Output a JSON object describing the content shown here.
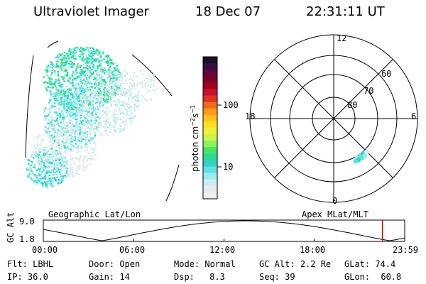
{
  "header": {
    "title": "Ultraviolet Imager",
    "date": "18 Dec 07",
    "time": "22:31:11 UT"
  },
  "colorbar": {
    "label_main": "photon cm",
    "label_exp1": "−2",
    "label_mid": "s",
    "label_exp2": "−1",
    "ticks": [
      "100",
      "10"
    ],
    "colors": [
      "#1a0f2e",
      "#3a0d3e",
      "#5b0a3a",
      "#7d0026",
      "#a3001b",
      "#c8102e",
      "#e0341f",
      "#f26a1b",
      "#ff9a1a",
      "#ffc21a",
      "#ffe020",
      "#f0f036",
      "#c9f54a",
      "#8ef25a",
      "#48e36a",
      "#2fd996",
      "#31d4c2",
      "#5fe0e6",
      "#9eeaf0",
      "#cdeef0",
      "#e6ecec",
      "#eeeeee"
    ]
  },
  "polar": {
    "labels": {
      "top": "12",
      "bottom": "0",
      "left": "18",
      "right": "6"
    },
    "rings": [
      "60",
      "70",
      "80"
    ]
  },
  "strip": {
    "left_title": "Geographic Lat/Lon",
    "right_title": "Apex MLat/MLT",
    "ylabel": "GC Alt",
    "ymax": "9.0",
    "ymin": "1.8",
    "time_ticks": [
      "00:00",
      "06:00",
      "12:00",
      "18:00",
      "23:59"
    ],
    "marker_time_hours": 22.52
  },
  "info": {
    "flt_label": "Flt:",
    "flt_value": "LBHL",
    "door_label": "Door:",
    "door_value": "Open",
    "mode_label": "Mode:",
    "mode_value": "Normal",
    "gcalt_label": "GC Alt:",
    "gcalt_value": "2.2 Re",
    "glat_label": "GLat:",
    "glat_value": "74.4",
    "ip_label": "IP:",
    "ip_value": "36.0",
    "gain_label": "Gain:",
    "gain_value": "14",
    "dsp_label": "Dsp:",
    "dsp_value": "8.3",
    "seq_label": "Seq:",
    "seq_value": "39",
    "glon_label": "GLon:",
    "glon_value": "60.8"
  }
}
